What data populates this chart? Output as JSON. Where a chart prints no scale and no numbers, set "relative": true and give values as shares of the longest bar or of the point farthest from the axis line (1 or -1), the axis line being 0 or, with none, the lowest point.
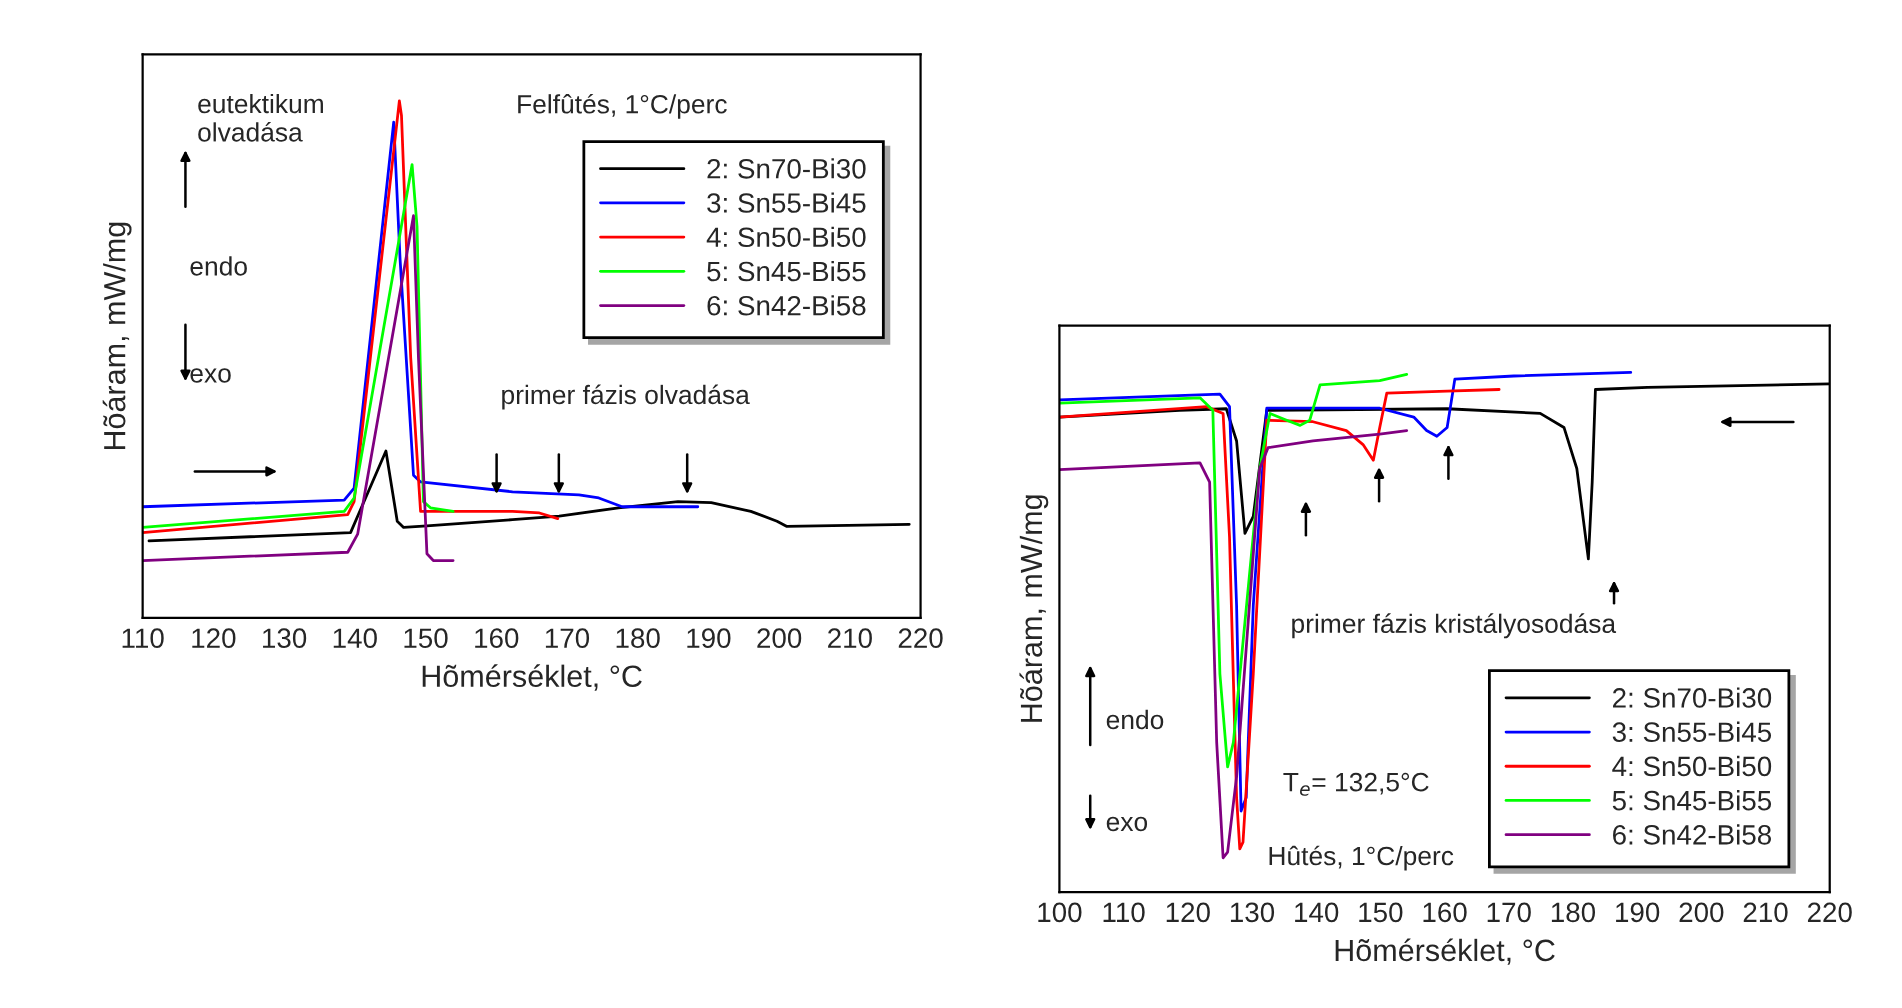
{
  "chart_data": [
    {
      "type": "line",
      "relative": true,
      "xlabel": "Hõmérséklet, °C",
      "ylabel": "Hõáram, mW/mg",
      "xlim": [
        110,
        220
      ],
      "xticks": [
        110,
        120,
        130,
        140,
        150,
        160,
        170,
        180,
        190,
        200,
        210,
        220
      ],
      "legend": "top right",
      "grid": false,
      "annotations": [
        "eutektikum\nolvadása",
        "Felfûtés, 1°C/perc",
        "endo",
        "exo",
        "primer fázis olvadása"
      ],
      "series": [
        {
          "name": "2: Sn70-Bi30",
          "color": "#000000",
          "x": [
            110.9,
            139.4,
            144.4,
            146.0,
            146.9,
            150.2,
            162.3,
            168.9,
            177.3,
            185.7,
            190.4,
            196.0,
            199.7,
            201.1,
            218.4
          ],
          "values": [
            0.149,
            0.165,
            0.323,
            0.187,
            0.175,
            0.178,
            0.19,
            0.197,
            0.213,
            0.225,
            0.223,
            0.206,
            0.187,
            0.177,
            0.181
          ]
        },
        {
          "name": "3: Sn55-Bi45",
          "color": "#0000ff",
          "x": [
            110,
            138.5,
            139.9,
            145.5,
            146.4,
            148.3,
            149.3,
            162.3,
            171.7,
            174.5,
            177.8,
            188.5
          ],
          "values": [
            0.215,
            0.228,
            0.251,
            0.959,
            0.694,
            0.276,
            0.263,
            0.244,
            0.238,
            0.232,
            0.215,
            0.215
          ]
        },
        {
          "name": "4: Sn50-Bi50",
          "color": "#ff0000",
          "x": [
            110,
            139.0,
            139.9,
            146.3,
            146.6,
            147.9,
            149.3,
            162.3,
            166.1,
            168.7
          ],
          "values": [
            0.165,
            0.2,
            0.225,
            1.0,
            0.972,
            0.504,
            0.206,
            0.206,
            0.203,
            0.192
          ]
        },
        {
          "name": "5: Sn45-Bi55",
          "color": "#00ff00",
          "x": [
            110,
            138.5,
            139.9,
            148.1,
            148.8,
            149.7,
            150.7,
            153.9
          ],
          "values": [
            0.175,
            0.206,
            0.232,
            0.877,
            0.757,
            0.225,
            0.213,
            0.206
          ]
        },
        {
          "name": "6: Sn42-Bi58",
          "color": "#800080",
          "x": [
            110,
            139.0,
            140.4,
            148.3,
            149.0,
            150.2,
            151.1,
            153.9
          ],
          "values": [
            0.111,
            0.127,
            0.162,
            0.778,
            0.504,
            0.124,
            0.111,
            0.111
          ]
        }
      ]
    },
    {
      "type": "line",
      "relative": true,
      "xlabel": "Hõmérséklet, °C",
      "ylabel": "Hõáram, mW/mg",
      "xlim": [
        100,
        220
      ],
      "xticks": [
        100,
        110,
        120,
        130,
        140,
        150,
        160,
        170,
        180,
        190,
        200,
        210,
        220
      ],
      "legend": "bottom right",
      "grid": false,
      "annotations": [
        "primer fázis kristályosodása",
        "endo",
        "exo",
        "T$_{e}$= 132,5°C",
        "Hûtés, 1°C/perc"
      ],
      "series": [
        {
          "name": "2: Sn70-Bi30",
          "color": "#000000",
          "x": [
            100,
            118.7,
            126.0,
            127.6,
            128.9,
            130.2,
            132.3,
            160.4,
            174.9,
            178.6,
            180.6,
            182.4,
            183.0,
            183.5,
            191.6,
            220
          ],
          "values": [
            0.914,
            0.927,
            0.93,
            0.868,
            0.69,
            0.723,
            0.927,
            0.93,
            0.921,
            0.894,
            0.815,
            0.641,
            0.789,
            0.967,
            0.971,
            0.978
          ]
        },
        {
          "name": "3: Sn55-Bi45",
          "color": "#0000ff",
          "x": [
            100,
            125.0,
            126.5,
            127.6,
            128.3,
            129.1,
            130.2,
            132.3,
            149.9,
            155.2,
            157.2,
            158.8,
            160.4,
            161.6,
            170.8,
            189.0
          ],
          "values": [
            0.947,
            0.958,
            0.934,
            0.551,
            0.156,
            0.182,
            0.551,
            0.931,
            0.931,
            0.914,
            0.888,
            0.877,
            0.894,
            0.987,
            0.993,
            1.0
          ]
        },
        {
          "name": "4: Sn50-Bi50",
          "color": "#ff0000",
          "x": [
            100,
            122.9,
            125.5,
            126.5,
            127.6,
            128.1,
            128.6,
            130.2,
            132.3,
            139.5,
            144.7,
            147.3,
            148.9,
            149.9,
            151.0,
            160.4,
            168.5
          ],
          "values": [
            0.914,
            0.934,
            0.921,
            0.683,
            0.182,
            0.083,
            0.096,
            0.42,
            0.908,
            0.905,
            0.888,
            0.861,
            0.831,
            0.894,
            0.96,
            0.964,
            0.967
          ]
        },
        {
          "name": "5: Sn45-Bi55",
          "color": "#00ff00",
          "x": [
            100,
            121.9,
            123.9,
            125.0,
            126.2,
            127.1,
            131.2,
            132.8,
            135.4,
            137.5,
            139.0,
            140.6,
            149.9,
            154.1
          ],
          "values": [
            0.941,
            0.951,
            0.927,
            0.42,
            0.241,
            0.288,
            0.815,
            0.921,
            0.908,
            0.898,
            0.908,
            0.976,
            0.984,
            0.996
          ]
        },
        {
          "name": "6: Sn42-Bi58",
          "color": "#800080",
          "x": [
            100,
            121.9,
            123.4,
            124.5,
            125.5,
            126.2,
            127.6,
            131.2,
            132.5,
            139.5,
            149.9,
            154.1
          ],
          "values": [
            0.813,
            0.826,
            0.789,
            0.288,
            0.066,
            0.077,
            0.222,
            0.815,
            0.855,
            0.868,
            0.881,
            0.888
          ]
        }
      ]
    }
  ]
}
